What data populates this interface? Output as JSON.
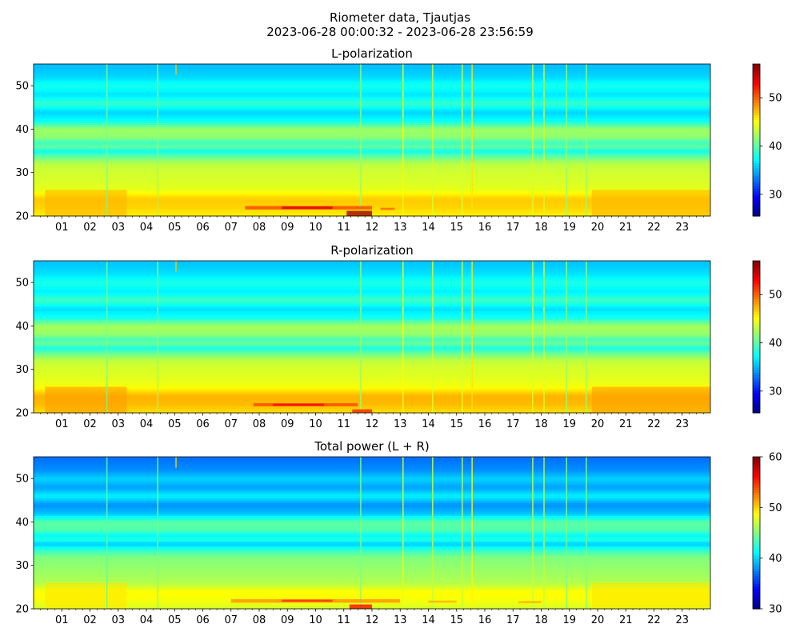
{
  "figure": {
    "title_line1": "Riometer data, Tjautjas",
    "title_line2": "2023-06-28 00:00:32 - 2023-06-28 23:56:59"
  },
  "colormap": [
    "#00007f",
    "#0000ff",
    "#007fff",
    "#00ffff",
    "#7fff7f",
    "#ffff00",
    "#ff7f00",
    "#ff0000",
    "#7f0000"
  ],
  "chart_data": [
    {
      "type": "heatmap",
      "title": "L-polarization",
      "xlabel": "",
      "ylabel": "",
      "x_tick_labels": [
        "01",
        "02",
        "03",
        "04",
        "05",
        "06",
        "07",
        "08",
        "09",
        "10",
        "11",
        "12",
        "13",
        "14",
        "15",
        "16",
        "17",
        "18",
        "19",
        "20",
        "21",
        "22",
        "23"
      ],
      "xlim": [
        0,
        24
      ],
      "ylim": [
        20,
        55
      ],
      "y_ticks": [
        20,
        30,
        40,
        50
      ],
      "colorbar": {
        "range": [
          25.5,
          57
        ],
        "ticks": [
          30,
          40,
          50
        ]
      },
      "rows": [
        {
          "y": 20,
          "value": 45.5
        },
        {
          "y": 22,
          "value": 46.5
        },
        {
          "y": 24,
          "value": 46.8
        },
        {
          "y": 26,
          "value": 44.5
        },
        {
          "y": 28,
          "value": 44
        },
        {
          "y": 30,
          "value": 43.8
        },
        {
          "y": 32,
          "value": 43.2
        },
        {
          "y": 34,
          "value": 40
        },
        {
          "y": 35,
          "value": 37.5
        },
        {
          "y": 36,
          "value": 40.5
        },
        {
          "y": 37,
          "value": 39
        },
        {
          "y": 38,
          "value": 41.5
        },
        {
          "y": 40,
          "value": 42.3
        },
        {
          "y": 42,
          "value": 37.5
        },
        {
          "y": 44,
          "value": 36
        },
        {
          "y": 46,
          "value": 39
        },
        {
          "y": 48,
          "value": 36.5
        },
        {
          "y": 50,
          "value": 38
        },
        {
          "y": 52,
          "value": 36.2
        },
        {
          "y": 54,
          "value": 35.5
        },
        {
          "y": 55,
          "value": 35.3
        }
      ],
      "vertical_streaks": [
        {
          "x": 5.05,
          "value": 47,
          "y": [
            52.5,
            55
          ]
        },
        {
          "x": 13.1,
          "value": 45,
          "y": [
            20,
            55
          ]
        },
        {
          "x": 14.15,
          "value": 44,
          "y": [
            20,
            55
          ]
        },
        {
          "x": 15.2,
          "value": 44,
          "y": [
            20,
            55
          ]
        },
        {
          "x": 15.55,
          "value": 46,
          "y": [
            20,
            55
          ]
        },
        {
          "x": 17.7,
          "value": 44,
          "y": [
            20,
            55
          ]
        },
        {
          "x": 18.1,
          "value": 44,
          "y": [
            20,
            55
          ]
        },
        {
          "x": 18.9,
          "value": 42,
          "y": [
            20,
            55
          ]
        },
        {
          "x": 19.6,
          "value": 42,
          "y": [
            20,
            55
          ]
        },
        {
          "x": 4.4,
          "value": 42,
          "y": [
            20,
            55
          ]
        },
        {
          "x": 2.6,
          "value": 41,
          "y": [
            20,
            55
          ]
        },
        {
          "x": 11.6,
          "value": 42,
          "y": [
            20,
            55
          ]
        }
      ],
      "hot_patches": [
        {
          "x": [
            7.5,
            12.0
          ],
          "y": [
            21.5,
            22.3
          ],
          "value": 51
        },
        {
          "x": [
            8.8,
            10.6
          ],
          "y": [
            21.6,
            22.2
          ],
          "value": 54
        },
        {
          "x": [
            11.1,
            12.0
          ],
          "y": [
            20.0,
            21.2
          ],
          "value": 56
        },
        {
          "x": [
            12.3,
            12.8
          ],
          "y": [
            21.4,
            21.9
          ],
          "value": 50
        }
      ]
    },
    {
      "type": "heatmap",
      "title": "R-polarization",
      "xlabel": "",
      "ylabel": "",
      "x_tick_labels": [
        "01",
        "02",
        "03",
        "04",
        "05",
        "06",
        "07",
        "08",
        "09",
        "10",
        "11",
        "12",
        "13",
        "14",
        "15",
        "16",
        "17",
        "18",
        "19",
        "20",
        "21",
        "22",
        "23"
      ],
      "xlim": [
        0,
        24
      ],
      "ylim": [
        20,
        55
      ],
      "y_ticks": [
        20,
        30,
        40,
        50
      ],
      "colorbar": {
        "range": [
          25.5,
          57
        ],
        "ticks": [
          30,
          40,
          50
        ]
      },
      "rows": [
        {
          "y": 20,
          "value": 46
        },
        {
          "y": 22,
          "value": 47.3
        },
        {
          "y": 24,
          "value": 47.5
        },
        {
          "y": 26,
          "value": 45
        },
        {
          "y": 28,
          "value": 44.3
        },
        {
          "y": 30,
          "value": 44
        },
        {
          "y": 32,
          "value": 43.4
        },
        {
          "y": 34,
          "value": 40.2
        },
        {
          "y": 35,
          "value": 37.8
        },
        {
          "y": 36,
          "value": 40.8
        },
        {
          "y": 37,
          "value": 39.2
        },
        {
          "y": 38,
          "value": 41.8
        },
        {
          "y": 40,
          "value": 42.5
        },
        {
          "y": 42,
          "value": 37.8
        },
        {
          "y": 44,
          "value": 36.3
        },
        {
          "y": 46,
          "value": 39.3
        },
        {
          "y": 48,
          "value": 36.8
        },
        {
          "y": 50,
          "value": 38.2
        },
        {
          "y": 52,
          "value": 36.5
        },
        {
          "y": 54,
          "value": 35.7
        },
        {
          "y": 55,
          "value": 35.5
        }
      ],
      "vertical_streaks": [
        {
          "x": 5.05,
          "value": 47,
          "y": [
            52.5,
            55
          ]
        },
        {
          "x": 13.1,
          "value": 45,
          "y": [
            20,
            55
          ]
        },
        {
          "x": 14.15,
          "value": 44,
          "y": [
            20,
            55
          ]
        },
        {
          "x": 15.2,
          "value": 44,
          "y": [
            20,
            55
          ]
        },
        {
          "x": 15.55,
          "value": 46,
          "y": [
            20,
            55
          ]
        },
        {
          "x": 17.7,
          "value": 44,
          "y": [
            20,
            55
          ]
        },
        {
          "x": 18.1,
          "value": 44,
          "y": [
            20,
            55
          ]
        },
        {
          "x": 18.9,
          "value": 42,
          "y": [
            20,
            55
          ]
        },
        {
          "x": 19.6,
          "value": 42,
          "y": [
            20,
            55
          ]
        },
        {
          "x": 4.4,
          "value": 42,
          "y": [
            20,
            55
          ]
        },
        {
          "x": 2.6,
          "value": 41,
          "y": [
            20,
            55
          ]
        },
        {
          "x": 11.6,
          "value": 42,
          "y": [
            20,
            55
          ]
        }
      ],
      "hot_patches": [
        {
          "x": [
            7.8,
            11.5
          ],
          "y": [
            21.5,
            22.2
          ],
          "value": 51
        },
        {
          "x": [
            8.5,
            10.3
          ],
          "y": [
            21.6,
            22.1
          ],
          "value": 53
        },
        {
          "x": [
            11.3,
            12.0
          ],
          "y": [
            20.0,
            20.8
          ],
          "value": 52
        }
      ]
    },
    {
      "type": "heatmap",
      "title": "Total power (L + R)",
      "xlabel": "",
      "ylabel": "",
      "x_tick_labels": [
        "01",
        "02",
        "03",
        "04",
        "05",
        "06",
        "07",
        "08",
        "09",
        "10",
        "11",
        "12",
        "13",
        "14",
        "15",
        "16",
        "17",
        "18",
        "19",
        "20",
        "21",
        "22",
        "23"
      ],
      "xlim": [
        0,
        24
      ],
      "ylim": [
        20,
        55
      ],
      "y_ticks": [
        20,
        30,
        40,
        50
      ],
      "colorbar": {
        "range": [
          30,
          60
        ],
        "ticks": [
          30,
          40,
          50,
          60
        ]
      },
      "rows": [
        {
          "y": 20,
          "value": 47.5
        },
        {
          "y": 22,
          "value": 48.5
        },
        {
          "y": 24,
          "value": 48.8
        },
        {
          "y": 26,
          "value": 46.5
        },
        {
          "y": 28,
          "value": 46
        },
        {
          "y": 30,
          "value": 45.5
        },
        {
          "y": 32,
          "value": 45
        },
        {
          "y": 34,
          "value": 42
        },
        {
          "y": 35,
          "value": 39.5
        },
        {
          "y": 36,
          "value": 42.5
        },
        {
          "y": 37,
          "value": 41
        },
        {
          "y": 38,
          "value": 43.5
        },
        {
          "y": 40,
          "value": 44
        },
        {
          "y": 42,
          "value": 39.5
        },
        {
          "y": 44,
          "value": 38
        },
        {
          "y": 46,
          "value": 41
        },
        {
          "y": 48,
          "value": 38.5
        },
        {
          "y": 50,
          "value": 40
        },
        {
          "y": 52,
          "value": 38
        },
        {
          "y": 54,
          "value": 37.3
        },
        {
          "y": 55,
          "value": 37
        }
      ],
      "vertical_streaks": [
        {
          "x": 5.05,
          "value": 50,
          "y": [
            52.5,
            55
          ]
        },
        {
          "x": 13.1,
          "value": 48,
          "y": [
            20,
            55
          ]
        },
        {
          "x": 14.15,
          "value": 47,
          "y": [
            20,
            55
          ]
        },
        {
          "x": 15.2,
          "value": 47,
          "y": [
            20,
            55
          ]
        },
        {
          "x": 15.55,
          "value": 49,
          "y": [
            20,
            55
          ]
        },
        {
          "x": 17.7,
          "value": 47,
          "y": [
            20,
            55
          ]
        },
        {
          "x": 18.1,
          "value": 47,
          "y": [
            20,
            55
          ]
        },
        {
          "x": 18.9,
          "value": 45,
          "y": [
            20,
            55
          ]
        },
        {
          "x": 19.6,
          "value": 45,
          "y": [
            20,
            55
          ]
        },
        {
          "x": 4.4,
          "value": 45,
          "y": [
            20,
            55
          ]
        },
        {
          "x": 2.6,
          "value": 44,
          "y": [
            20,
            55
          ]
        },
        {
          "x": 11.6,
          "value": 45,
          "y": [
            20,
            55
          ]
        }
      ],
      "hot_patches": [
        {
          "x": [
            7.0,
            13.0
          ],
          "y": [
            21.4,
            22.2
          ],
          "value": 52
        },
        {
          "x": [
            8.8,
            10.6
          ],
          "y": [
            21.6,
            22.1
          ],
          "value": 55
        },
        {
          "x": [
            11.2,
            12.0
          ],
          "y": [
            20.0,
            21.0
          ],
          "value": 56
        },
        {
          "x": [
            14.0,
            15.0
          ],
          "y": [
            21.4,
            21.9
          ],
          "value": 51
        },
        {
          "x": [
            17.2,
            18.0
          ],
          "y": [
            21.3,
            21.8
          ],
          "value": 51
        }
      ]
    }
  ]
}
